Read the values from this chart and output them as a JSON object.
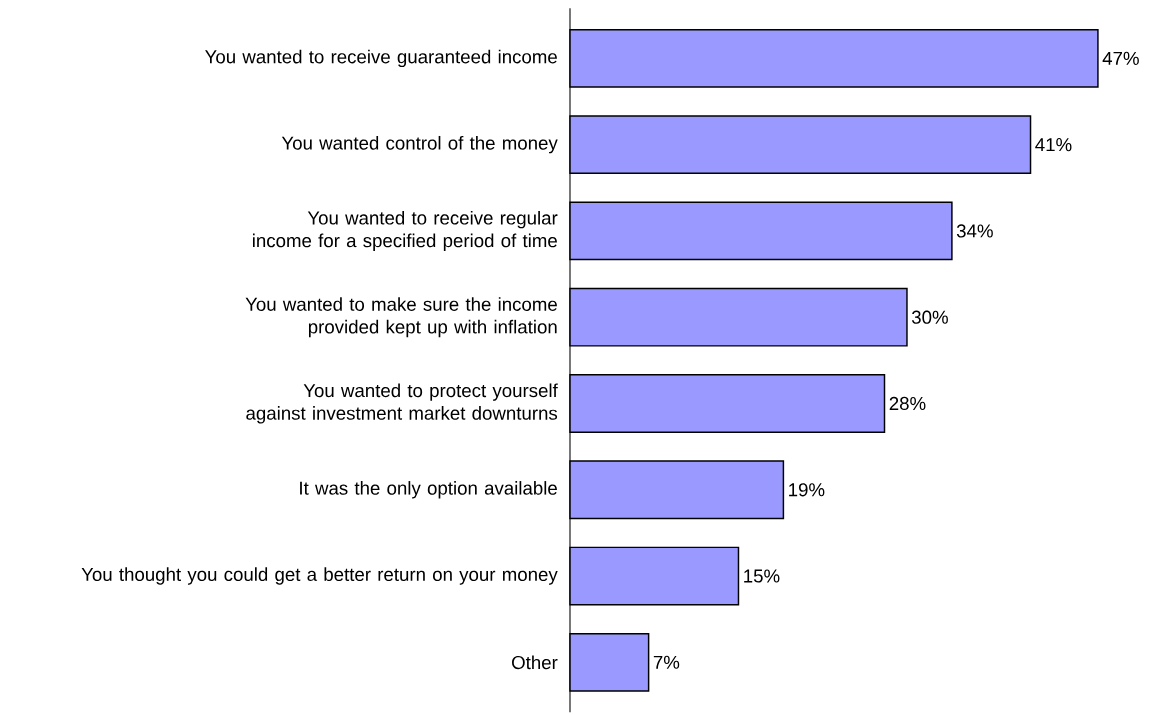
{
  "chart_data": {
    "type": "bar",
    "orientation": "horizontal",
    "categories": [
      "You wanted to receive guaranteed income",
      "You wanted control of the money",
      "You wanted to receive regular income for a specified period of time",
      "You wanted to make sure the income provided kept up with inflation",
      "You wanted to protect yourself against investment market downturns",
      "It was the only option available",
      "You thought you could get a better return on your money",
      "Other"
    ],
    "values": [
      47,
      41,
      34,
      30,
      28,
      19,
      15,
      7
    ],
    "value_labels": [
      "47%",
      "41%",
      "34%",
      "30%",
      "28%",
      "19%",
      "15%",
      "7%"
    ],
    "color": "#9999ff"
  }
}
